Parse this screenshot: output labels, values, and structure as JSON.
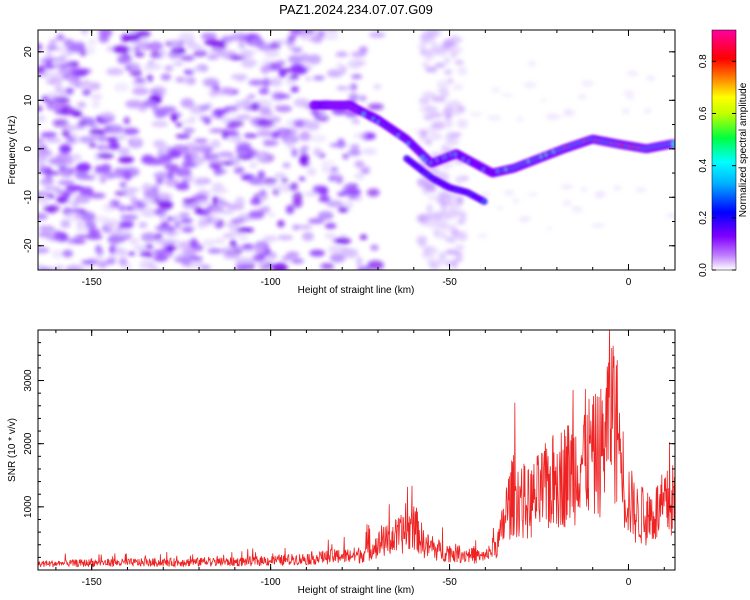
{
  "title": "PAZ1.2024.234.07.07.G09",
  "chart_data": [
    {
      "type": "heatmap",
      "title": "PAZ1.2024.234.07.07.G09",
      "xlabel": "Height of straight line (km)",
      "ylabel": "Frequency (Hz)",
      "xlim": [
        -165,
        13
      ],
      "ylim": [
        -25,
        24.5
      ],
      "x_ticks": [
        -150,
        -100,
        -50,
        0
      ],
      "x_tick_labels": [
        "-150",
        "-100",
        "-50",
        "0"
      ],
      "y_ticks": [
        -20,
        -10,
        0,
        10,
        20
      ],
      "y_tick_labels": [
        "-20",
        "-10",
        "0",
        "10",
        "20"
      ],
      "colorbar": {
        "label": "Normalized spectral amplitude",
        "range": [
          0,
          0.92
        ],
        "ticks": [
          0.0,
          0.2,
          0.4,
          0.6,
          0.8
        ],
        "tick_labels": [
          "0.0",
          "0.2",
          "0.4",
          "0.6",
          "0.8"
        ],
        "colormap": [
          "#ffffff",
          "#8000ff",
          "#0000ff",
          "#00ffff",
          "#00ff00",
          "#ffff00",
          "#ff8000",
          "#ff0000",
          "#ff00ff"
        ]
      },
      "ridge": {
        "description_points_x_km": [
          -85,
          -78,
          -70,
          -62,
          -55,
          -48,
          -43,
          -38,
          -32,
          -25,
          -18,
          -10,
          -3,
          5,
          12
        ],
        "description_points_freq_hz": [
          9,
          9,
          6,
          2,
          -3,
          -1,
          -3,
          -5,
          -4,
          -2,
          0,
          2,
          1,
          0,
          1
        ],
        "branch_x_km": [
          -62,
          -55,
          -50,
          -45,
          -40
        ],
        "branch_freq_hz": [
          -2,
          -6,
          -8,
          -9,
          -11
        ]
      },
      "grid": false,
      "legend": "none"
    },
    {
      "type": "line",
      "xlabel": "Height of straight line (km)",
      "ylabel": "SNR (10 * v/v)",
      "xlim": [
        -165,
        13
      ],
      "ylim": [
        0,
        3800
      ],
      "x_ticks": [
        -150,
        -100,
        -50,
        0
      ],
      "x_tick_labels": [
        "-150",
        "-100",
        "-50",
        "0"
      ],
      "y_ticks": [
        1000,
        2000,
        3000
      ],
      "y_tick_labels": [
        "1000",
        "2000",
        "3000"
      ],
      "color": "#ee2222",
      "envelope_x_km": [
        -165,
        -150,
        -130,
        -110,
        -95,
        -85,
        -75,
        -70,
        -65,
        -62,
        -60,
        -57,
        -54,
        -50,
        -45,
        -40,
        -36,
        -34,
        -32,
        -30,
        -28,
        -25,
        -20,
        -15,
        -12,
        -10,
        -7,
        -5,
        -3,
        -1,
        2,
        5,
        8,
        10,
        13
      ],
      "envelope_snr": [
        120,
        140,
        150,
        160,
        200,
        250,
        300,
        500,
        650,
        750,
        900,
        500,
        400,
        350,
        300,
        250,
        600,
        1200,
        1500,
        1400,
        1300,
        1500,
        1800,
        2000,
        2300,
        2200,
        2400,
        3300,
        2700,
        1600,
        1100,
        1050,
        1150,
        1250,
        1400
      ],
      "grid": false,
      "legend": "none"
    }
  ]
}
